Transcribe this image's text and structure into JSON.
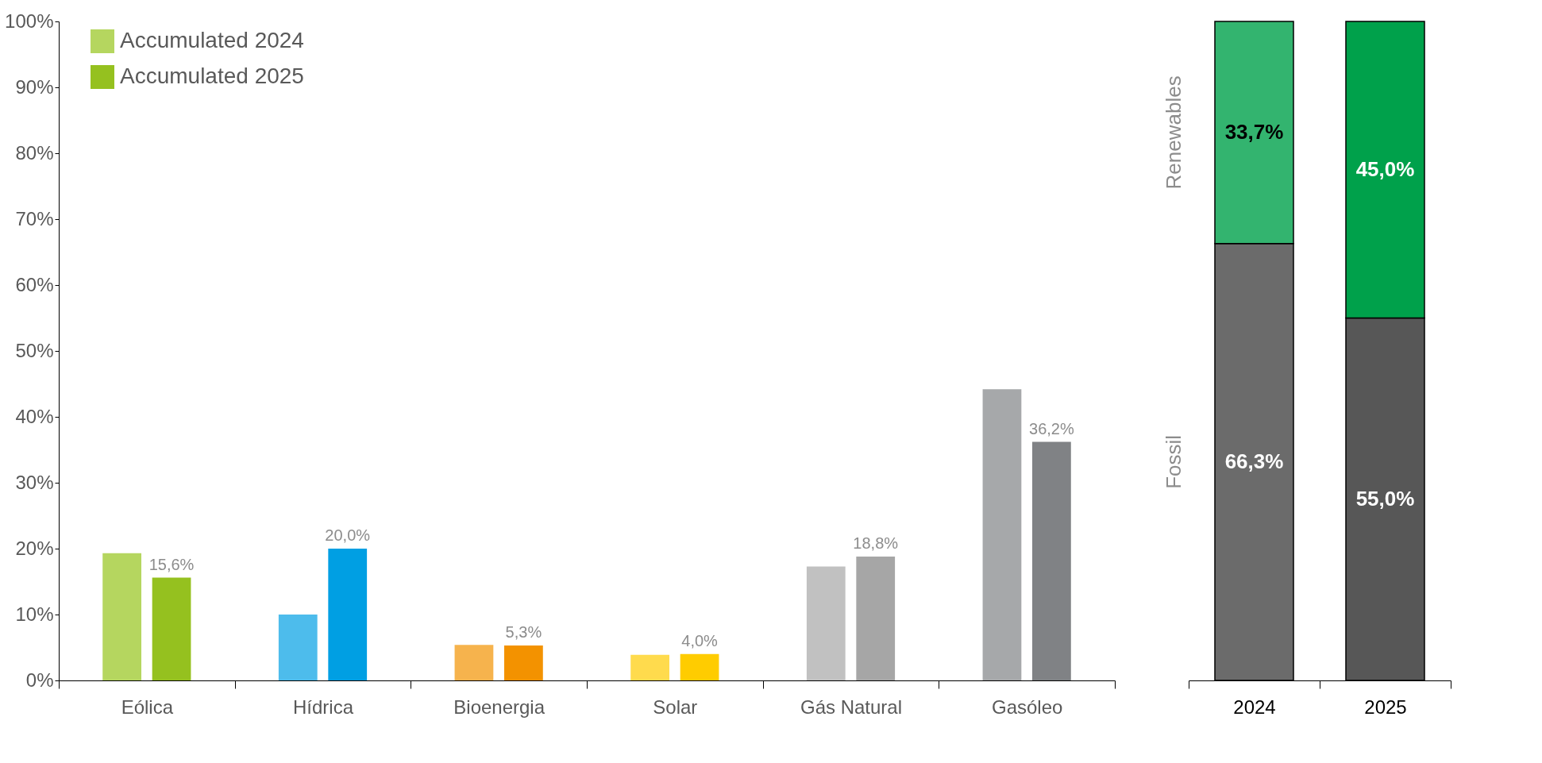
{
  "chart_data": [
    {
      "type": "bar",
      "categories": [
        "Eólica",
        "Hídrica",
        "Bioenergia",
        "Solar",
        "Gás Natural",
        "Gasóleo"
      ],
      "series": [
        {
          "name": "Accumulated 2024",
          "colors": [
            "#b5d65f",
            "#4dbcec",
            "#f6b34d",
            "#ffdb4d",
            "#c1c1c1",
            "#a6a8aa"
          ],
          "values": [
            19.3,
            10.0,
            5.4,
            3.9,
            17.3,
            44.2
          ]
        },
        {
          "name": "Accumulated 2025",
          "colors": [
            "#95c11f",
            "#009fe3",
            "#f39200",
            "#ffcc00",
            "#a6a6a6",
            "#808285"
          ],
          "values": [
            15.6,
            20.0,
            5.3,
            4.0,
            18.8,
            36.2
          ],
          "value_labels": [
            "15,6%",
            "20,0%",
            "5,3%",
            "4,0%",
            "18,8%",
            "36,2%"
          ]
        }
      ],
      "ylim": [
        0,
        100
      ],
      "yticks": [
        {
          "value": 0,
          "label": "0%"
        },
        {
          "value": 10,
          "label": "10%"
        },
        {
          "value": 20,
          "label": "20%"
        },
        {
          "value": 30,
          "label": "30%"
        },
        {
          "value": 40,
          "label": "40%"
        },
        {
          "value": 50,
          "label": "50%"
        },
        {
          "value": 60,
          "label": "60%"
        },
        {
          "value": 70,
          "label": "70%"
        },
        {
          "value": 80,
          "label": "80%"
        },
        {
          "value": 90,
          "label": "90%"
        },
        {
          "value": 100,
          "label": "100%"
        }
      ],
      "grid": false,
      "legend": "top left"
    },
    {
      "type": "bar",
      "stacked": true,
      "categories": [
        "2024",
        "2025"
      ],
      "series": [
        {
          "name": "Fossil",
          "colors": [
            "#6b6b6b",
            "#575757"
          ],
          "values": [
            66.3,
            55.0
          ],
          "value_labels": [
            "66,3%",
            "55,0%"
          ]
        },
        {
          "name": "Renewables",
          "colors": [
            "#33b46f",
            "#00a14b"
          ],
          "values": [
            33.7,
            45.0
          ],
          "value_labels": [
            "33,7%",
            "45,0%"
          ]
        }
      ],
      "tick_labels": "x"
    }
  ]
}
